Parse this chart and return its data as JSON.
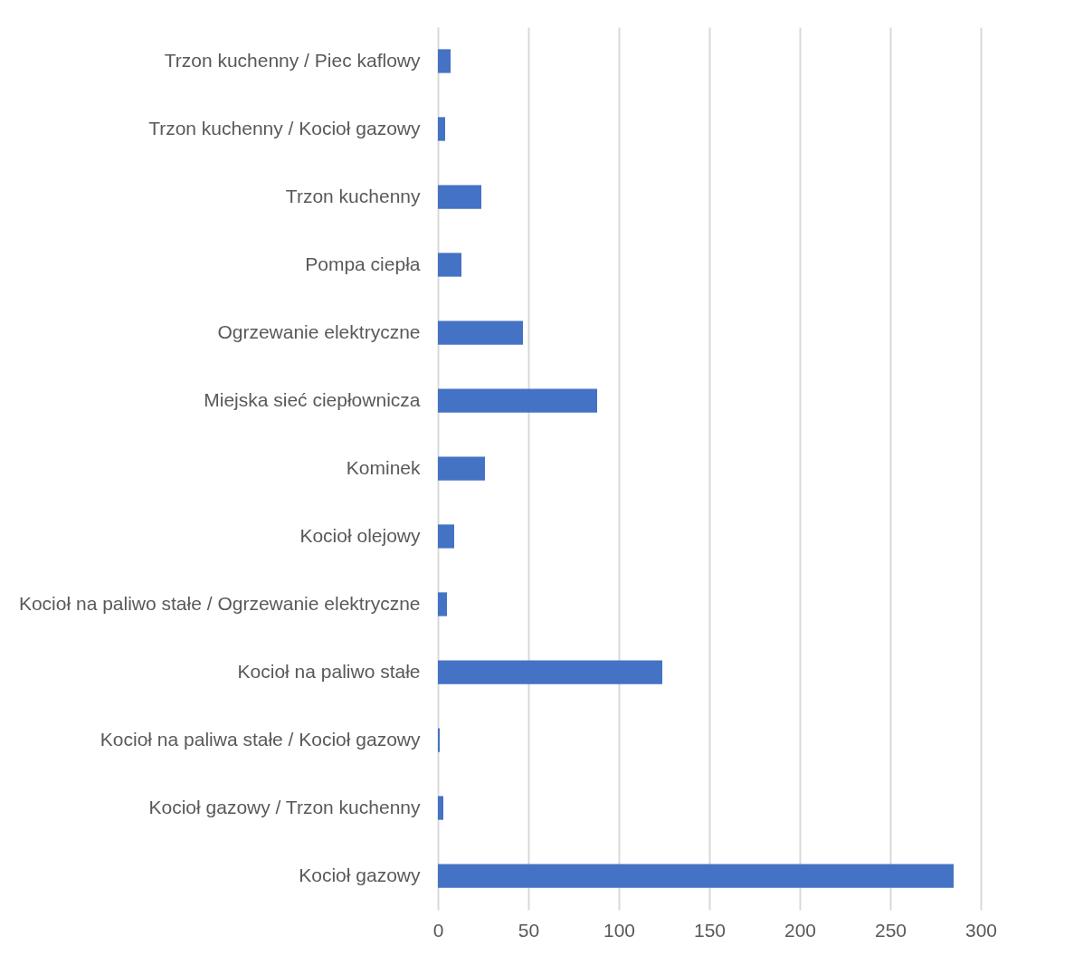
{
  "chart_data": {
    "type": "bar",
    "orientation": "horizontal",
    "categories": [
      "Trzon kuchenny / Piec kaflowy",
      "Trzon kuchenny / Kocioł gazowy",
      "Trzon kuchenny",
      "Pompa ciepła",
      "Ogrzewanie elektryczne",
      "Miejska sieć ciepłownicza",
      "Kominek",
      "Kocioł olejowy",
      "Kocioł na paliwo stałe / Ogrzewanie elektryczne",
      "Kocioł na paliwo stałe",
      "Kocioł na paliwa stałe / Kocioł gazowy",
      "Kocioł gazowy / Trzon kuchenny",
      "Kocioł gazowy"
    ],
    "values": [
      7,
      4,
      24,
      13,
      47,
      88,
      26,
      9,
      5,
      124,
      1,
      3,
      285
    ],
    "color": "#4472c4",
    "xlim": [
      0,
      300
    ],
    "xticks": [
      0,
      50,
      100,
      150,
      200,
      250,
      300
    ],
    "grid": "x"
  }
}
